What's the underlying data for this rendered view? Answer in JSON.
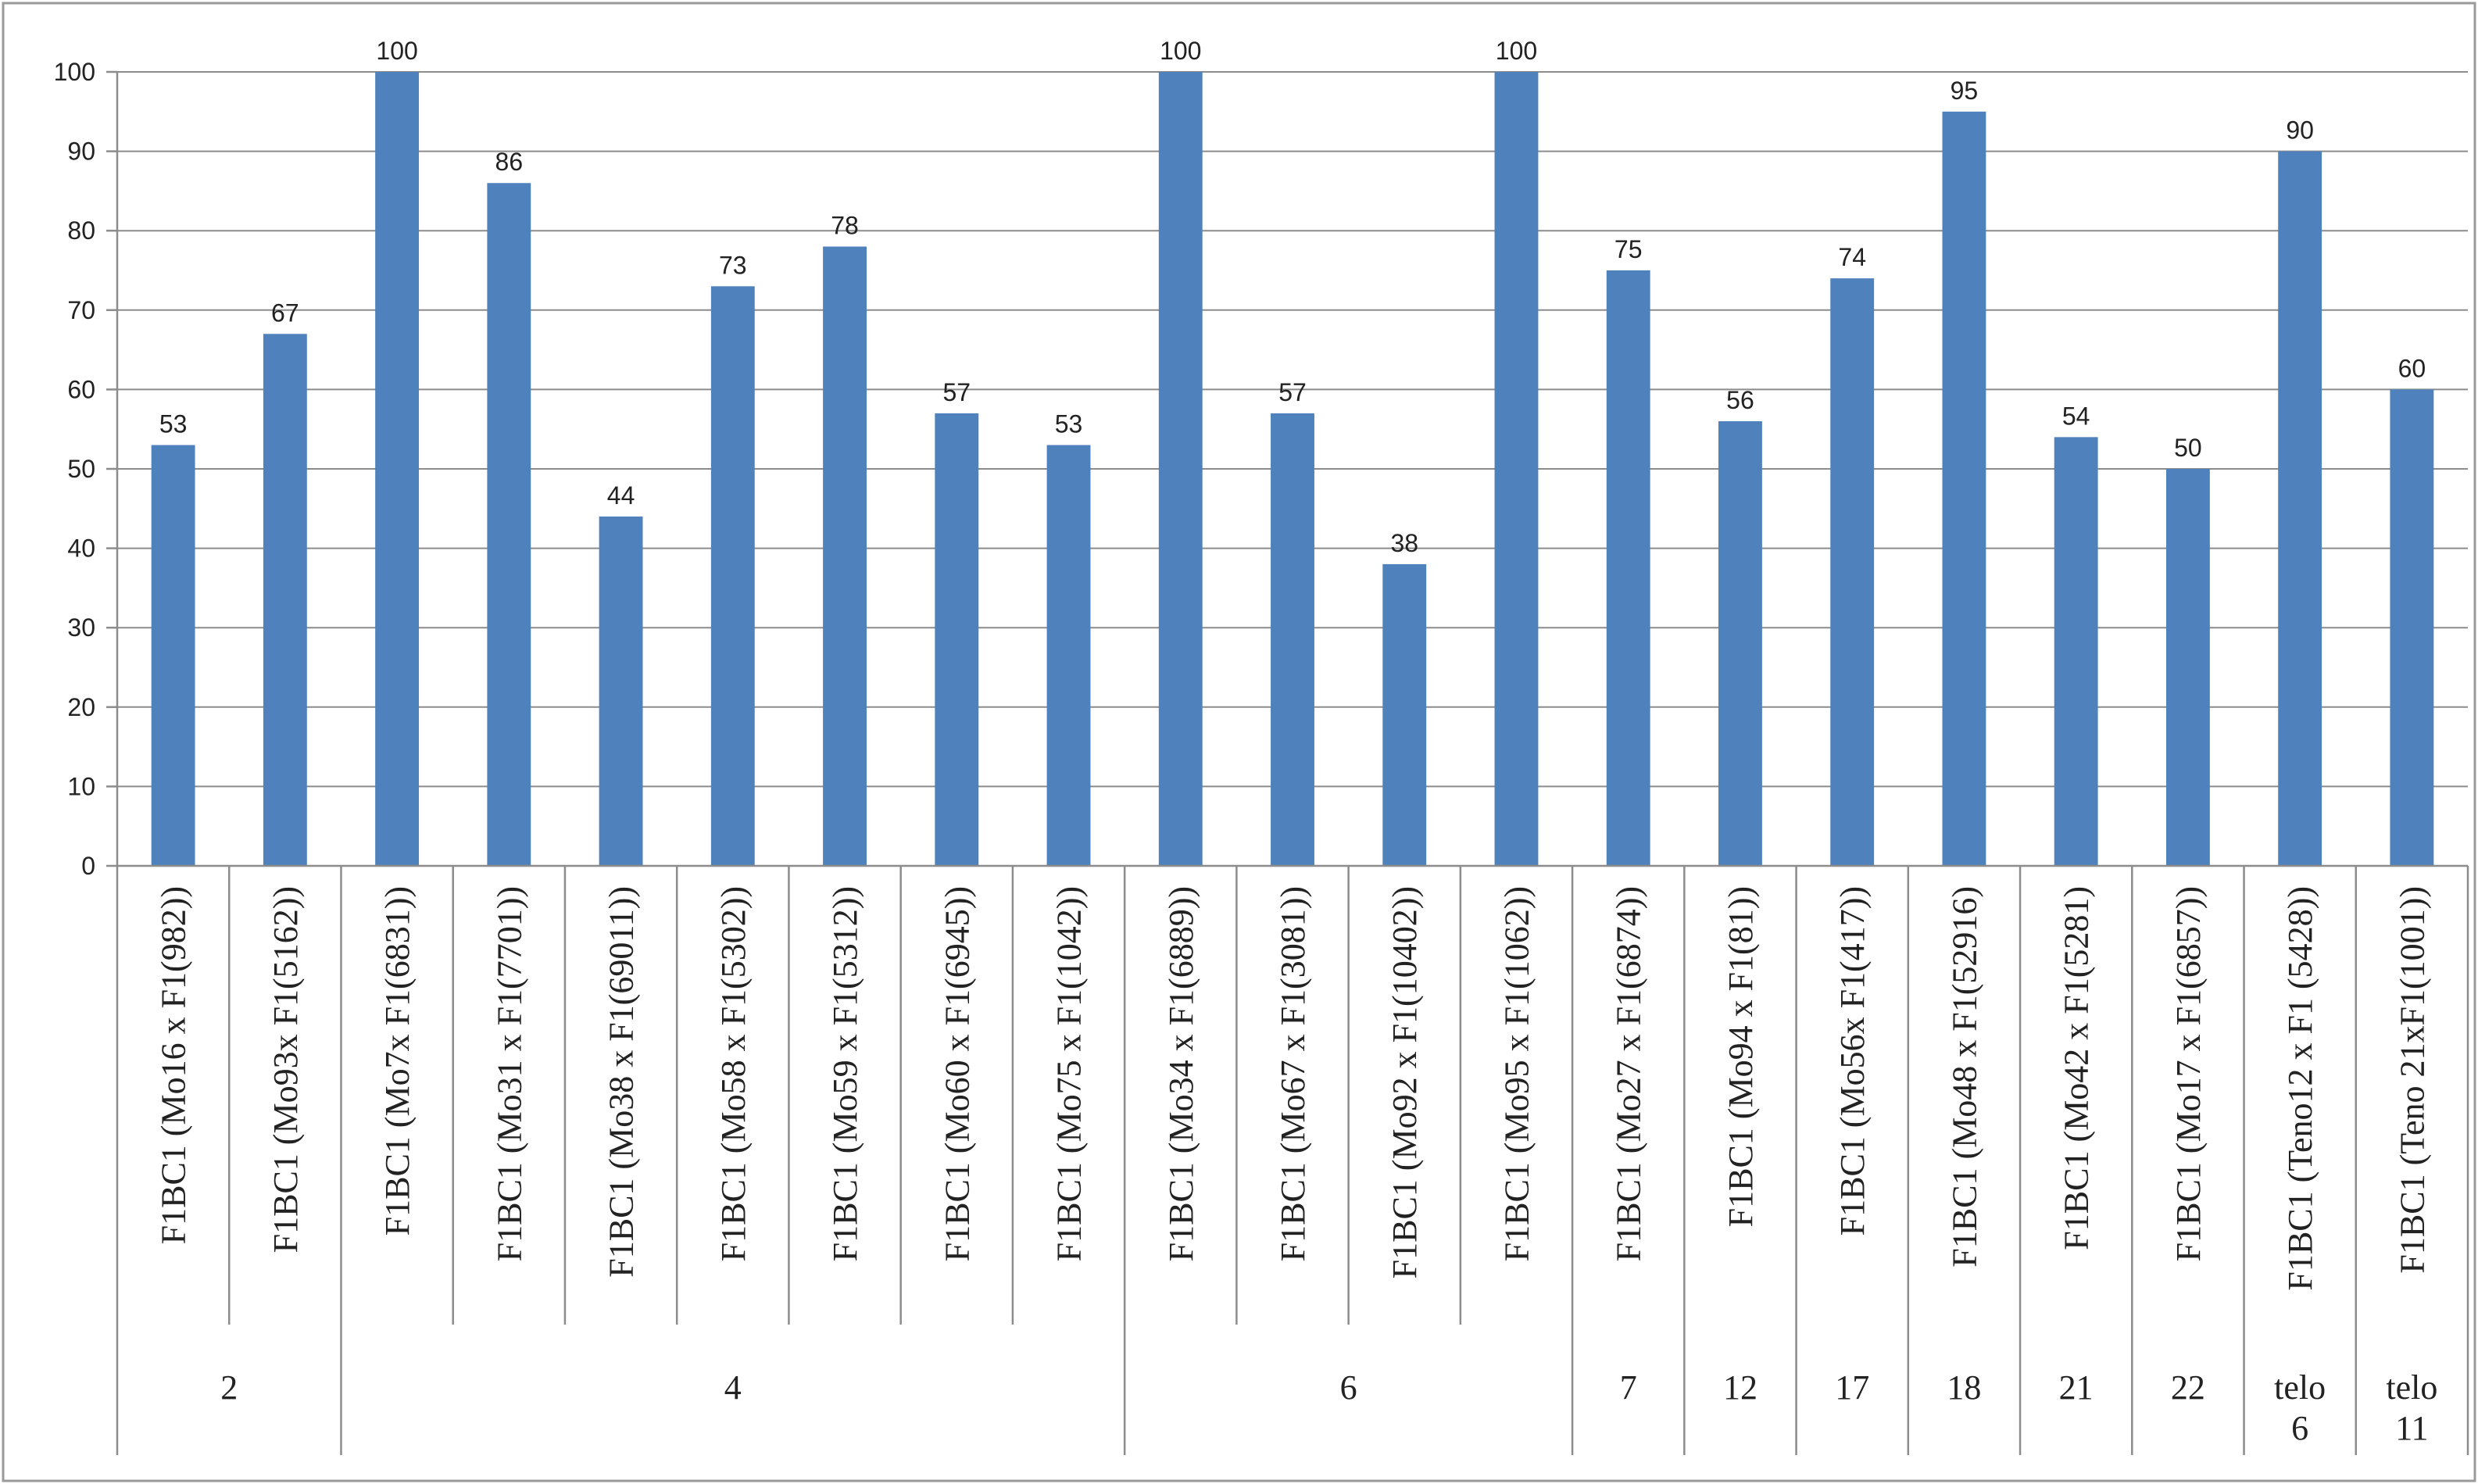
{
  "chart_data": {
    "type": "bar",
    "title": "",
    "xlabel": "",
    "ylabel": "",
    "ylim": [
      0,
      100
    ],
    "yticks": [
      0,
      10,
      20,
      30,
      40,
      50,
      60,
      70,
      80,
      90,
      100
    ],
    "grid": true,
    "legend": "none",
    "bar_color": "#4f81bd",
    "categories": [
      "F1BC1 (Mo16 x F1(982))",
      "F1BC1 (Mo93x F1(5162))",
      "F1BC1 (Mo7x F1(6831))",
      "F1BC1 (Mo31 x F1(7701))",
      "F1BC1 (Mo38 x F1(69011))",
      "F1BC1 (Mo58 x F1(5302))",
      "F1BC1 (Mo59 x F1(5312))",
      "F1BC1 (Mo60 x F1(6945))",
      "F1BC1 (Mo75 x F1(1042))",
      "F1BC1 (Mo34 x F1(6889))",
      "F1BC1 (Mo67 x F1(3081))",
      "F1BC1 (Mo92 x F1(10402))",
      "F1BC1 (Mo95 x F1(1062))",
      "F1BC1 (Mo27 x F1(6874))",
      "F1BC1 (Mo94 x F1(81))",
      "F1BC1 (Mo56x F1(417))",
      "F1BC1 (Mo48 x F1(52916)",
      "F1BC1 (Mo42 x F1(5281)",
      "F1BC1 (Mo17 x F1(6857))",
      "F1BC1 (Teno12 x F1 (5428))",
      "F1BC1 (Teno 21xF1(1001))"
    ],
    "values": [
      53,
      67,
      100,
      86,
      44,
      73,
      78,
      57,
      53,
      100,
      57,
      38,
      100,
      75,
      56,
      74,
      95,
      54,
      50,
      90,
      60
    ],
    "value_labels": [
      "53",
      "67",
      "100",
      "86",
      "44",
      "73",
      "78",
      "57",
      "53",
      "100",
      "57",
      "38",
      "100",
      "75",
      "56",
      "74",
      "95",
      "54",
      "50",
      "90",
      "60"
    ],
    "groups": [
      {
        "label": "2",
        "count": 2
      },
      {
        "label": "4",
        "count": 7
      },
      {
        "label": "6",
        "count": 4
      },
      {
        "label": "7",
        "count": 1
      },
      {
        "label": "12",
        "count": 1
      },
      {
        "label": "17",
        "count": 1
      },
      {
        "label": "18",
        "count": 1
      },
      {
        "label": "21",
        "count": 1
      },
      {
        "label": "22",
        "count": 1
      },
      {
        "label": "telo 6",
        "count": 1
      },
      {
        "label": "telo 11",
        "count": 1
      }
    ]
  }
}
